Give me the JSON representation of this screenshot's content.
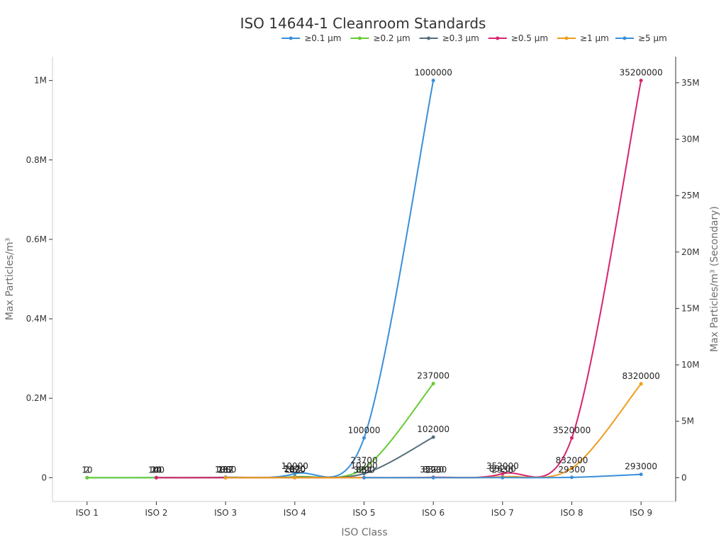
{
  "chart_data": {
    "type": "line",
    "title": "ISO 14644-1 Cleanroom Standards",
    "xlabel": "ISO Class",
    "ylabel": "Max Particles/m³",
    "ylabel_secondary": "Max Particles/m³ (Secondary)",
    "categories": [
      "ISO 1",
      "ISO 2",
      "ISO 3",
      "ISO 4",
      "ISO 5",
      "ISO 6",
      "ISO 7",
      "ISO 8",
      "ISO 9"
    ],
    "ylim": [
      -60000,
      1060000
    ],
    "ylim_secondary": [
      -2112000,
      37312000
    ],
    "yticks": [
      0,
      200000,
      400000,
      600000,
      800000,
      1000000
    ],
    "ytick_labels": [
      "0",
      "0.2M",
      "0.4M",
      "0.6M",
      "0.8M",
      "1M"
    ],
    "yticks_secondary": [
      0,
      5000000,
      10000000,
      15000000,
      20000000,
      25000000,
      30000000,
      35000000
    ],
    "ytick_labels_secondary": [
      "0",
      "5M",
      "10M",
      "15M",
      "20M",
      "25M",
      "30M",
      "35M"
    ],
    "legend_position": "top-right",
    "grid": false,
    "series": [
      {
        "name": "≥0.1 µm",
        "color": "#3a8fd9",
        "axis": "left",
        "values": [
          10,
          100,
          1000,
          10000,
          100000,
          1000000,
          null,
          null,
          null
        ],
        "labels": [
          "10",
          "100",
          "1000",
          "10000",
          "100000",
          "1000000",
          "",
          "",
          ""
        ]
      },
      {
        "name": "≥0.2 µm",
        "color": "#66cc33",
        "axis": "left",
        "values": [
          2,
          24,
          237,
          2370,
          23700,
          237000,
          null,
          null,
          null
        ],
        "labels": [
          "2",
          "24",
          "237",
          "2370",
          "23700",
          "237000",
          "",
          "",
          ""
        ]
      },
      {
        "name": "≥0.3 µm",
        "color": "#546e7a",
        "axis": "left",
        "values": [
          null,
          10,
          102,
          1020,
          10200,
          102000,
          null,
          null,
          null
        ],
        "labels": [
          "",
          "10",
          "102",
          "1020",
          "10200",
          "102000",
          "",
          "",
          ""
        ]
      },
      {
        "name": "≥0.5 µm",
        "color": "#d6246e",
        "axis": "right",
        "values": [
          null,
          4,
          35,
          352,
          3520,
          35200,
          352000,
          3520000,
          35200000
        ],
        "labels": [
          "",
          "4",
          "35",
          "352",
          "3520",
          "35200",
          "352000",
          "3520000",
          "35200000"
        ]
      },
      {
        "name": "≥1 µm",
        "color": "#f09c1c",
        "axis": "right",
        "values": [
          null,
          null,
          8,
          83,
          832,
          8320,
          83200,
          832000,
          8320000
        ],
        "labels": [
          "",
          "",
          "8",
          "83",
          "832",
          "8320",
          "83200",
          "832000",
          "8320000"
        ]
      },
      {
        "name": "≥5 µm",
        "color": "#3a8fd9",
        "axis": "right",
        "values": [
          null,
          null,
          null,
          null,
          29,
          293,
          2930,
          29300,
          293000
        ],
        "labels": [
          "",
          "",
          "",
          "",
          "29",
          "293",
          "2930",
          "29300",
          "293000"
        ]
      }
    ]
  }
}
